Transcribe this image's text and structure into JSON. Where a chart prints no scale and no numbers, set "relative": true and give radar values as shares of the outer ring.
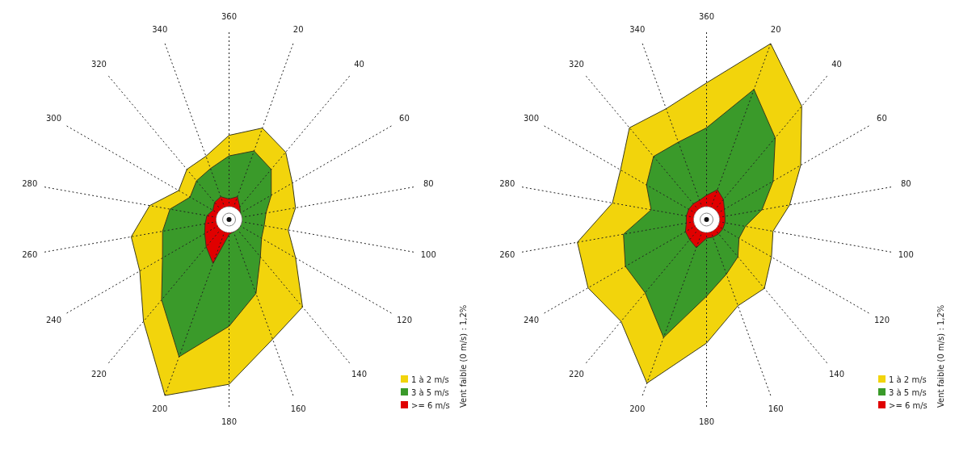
{
  "chart_data": [
    {
      "type": "radar",
      "relative": true,
      "categories": [
        "360",
        "20",
        "40",
        "60",
        "80",
        "100",
        "120",
        "140",
        "160",
        "180",
        "200",
        "220",
        "240",
        "260",
        "280",
        "300",
        "320",
        "340"
      ],
      "legend": "bottom right",
      "annotations": [
        "Vent faible (0 m/s) : 1,2%"
      ],
      "series": [
        {
          "name": "1 à 2 m/s",
          "color": "#f2d40c",
          "values": [
            0.45,
            0.52,
            0.47,
            0.39,
            0.36,
            0.32,
            0.41,
            0.61,
            0.68,
            0.88,
            1,
            0.71,
            0.55,
            0.53,
            0.43,
            0.31,
            0.35,
            0.36
          ]
        },
        {
          "name": "3 à 5 m/s",
          "color": "#3a9a2a",
          "values": [
            0.34,
            0.39,
            0.35,
            0.26,
            0.2,
            0.19,
            0.2,
            0.26,
            0.42,
            0.57,
            0.78,
            0.56,
            0.41,
            0.36,
            0.32,
            0.24,
            0.27,
            0.29
          ]
        },
        {
          "name": ">= 6 m/s",
          "color": "#e00000",
          "values": [
            0.11,
            0.13,
            0.09,
            0.07,
            0.07,
            0.07,
            0.07,
            0.07,
            0.07,
            0.08,
            0.25,
            0.19,
            0.15,
            0.13,
            0.12,
            0.1,
            0.12,
            0.13
          ]
        }
      ]
    },
    {
      "type": "radar",
      "relative": true,
      "categories": [
        "360",
        "20",
        "40",
        "60",
        "80",
        "100",
        "120",
        "140",
        "160",
        "180",
        "200",
        "220",
        "240",
        "260",
        "280",
        "300",
        "320",
        "340"
      ],
      "legend": "bottom right",
      "annotations": [
        "Vent faible (0 m/s) : 1,2%"
      ],
      "series": [
        {
          "name": "1 à 2 m/s",
          "color": "#f2d40c",
          "values": [
            0.73,
            1,
            0.79,
            0.58,
            0.45,
            0.36,
            0.4,
            0.48,
            0.49,
            0.66,
            0.93,
            0.71,
            0.73,
            0.7,
            0.51,
            0.53,
            0.64,
            0.63
          ]
        },
        {
          "name": "3 à 5 m/s",
          "color": "#3a9a2a",
          "values": [
            0.49,
            0.74,
            0.57,
            0.41,
            0.3,
            0.21,
            0.2,
            0.26,
            0.31,
            0.41,
            0.67,
            0.51,
            0.5,
            0.45,
            0.3,
            0.37,
            0.44,
            0.44
          ]
        },
        {
          "name": ">= 6 m/s",
          "color": "#e00000",
          "values": [
            0.13,
            0.17,
            0.14,
            0.11,
            0.1,
            0.1,
            0.1,
            0.1,
            0.1,
            0.1,
            0.16,
            0.14,
            0.13,
            0.11,
            0.11,
            0.11,
            0.11,
            0.11
          ]
        }
      ]
    }
  ]
}
